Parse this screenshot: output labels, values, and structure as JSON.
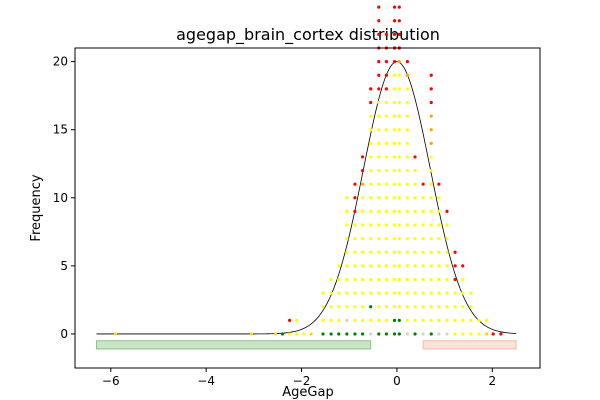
{
  "chart_data": {
    "type": "scatter",
    "title": "agegap_brain_cortex distribution",
    "xlabel": "AgeGap",
    "ylabel": "Frequency",
    "xlim": [
      -6.75,
      3.0
    ],
    "ylim": [
      -2.5,
      21.0
    ],
    "xticks": [
      -6,
      -4,
      -2,
      0,
      2
    ],
    "xtick_labels": [
      "−6",
      "−4",
      "−2",
      "0",
      "2"
    ],
    "yticks": [
      0,
      5,
      10,
      15,
      20
    ],
    "ytick_labels": [
      "0",
      "5",
      "10",
      "15",
      "20"
    ],
    "grid": false,
    "legend": "none",
    "density_curve": {
      "type": "gaussian",
      "mean": 0.0,
      "sd": 0.7,
      "peak": 20,
      "baseline": 0,
      "x_range": [
        -6.3,
        2.5
      ],
      "color": "#000000"
    },
    "range_bands": [
      {
        "x0": -6.3,
        "x1": -0.55,
        "y0": -1.1,
        "y1": -0.5,
        "fill": "#c9e5c5",
        "stroke": "#8cc488"
      },
      {
        "x0": 0.55,
        "x1": 2.5,
        "y0": -1.1,
        "y1": -0.5,
        "fill": "#fde2d9",
        "stroke": "#f4b9a6"
      }
    ],
    "point_colors": {
      "red": "#ff0000",
      "orange": "#ffa500",
      "yellow": "#ffff00",
      "green": "#008000",
      "lightgray": "#d3d3d3",
      "gold": "#ffd700"
    },
    "columns": [
      {
        "x": -5.9,
        "points": [
          "gold"
        ]
      },
      {
        "x": -3.05,
        "points": [
          "gold"
        ]
      },
      {
        "x": -2.55,
        "points": [
          "gold"
        ]
      },
      {
        "x": -2.4,
        "points": [
          "green"
        ]
      },
      {
        "x": -2.25,
        "points": [
          "yellow",
          "red"
        ]
      },
      {
        "x": -2.1,
        "points": [
          "yellow",
          "yellow"
        ]
      },
      {
        "x": -1.95,
        "points": [
          "yellow"
        ]
      },
      {
        "x": -1.8,
        "points": [
          "gold"
        ]
      },
      {
        "x": -1.55,
        "points": [
          "green",
          "yellow",
          "yellow",
          "yellow"
        ]
      },
      {
        "x": -1.38,
        "points": [
          "green",
          "yellow",
          "yellow",
          "yellow",
          "yellow"
        ]
      },
      {
        "x": -1.22,
        "points": [
          "green",
          "yellow",
          "yellow",
          "yellow",
          "yellow",
          "yellow"
        ]
      },
      {
        "x": -1.05,
        "points": [
          "green",
          "lightgray",
          "yellow",
          "yellow",
          "yellow",
          "yellow",
          "yellow",
          "yellow",
          "yellow",
          "yellow",
          "yellow"
        ]
      },
      {
        "x": -0.88,
        "points": [
          "green",
          "yellow",
          "yellow",
          "yellow",
          "yellow",
          "yellow",
          "yellow",
          "yellow",
          "yellow",
          "red",
          "red",
          "red"
        ]
      },
      {
        "x": -0.72,
        "points": [
          "green",
          "yellow",
          "yellow",
          "yellow",
          "yellow",
          "yellow",
          "yellow",
          "yellow",
          "yellow",
          "yellow",
          "yellow",
          "orange",
          "red",
          "red"
        ]
      },
      {
        "x": -0.55,
        "points": [
          "lightgray",
          "yellow",
          "green",
          "yellow",
          "yellow",
          "yellow",
          "yellow",
          "yellow",
          "yellow",
          "yellow",
          "yellow",
          "yellow",
          "yellow",
          "yellow",
          "yellow",
          "yellow",
          "yellow",
          "red",
          "red"
        ]
      },
      {
        "x": -0.38,
        "points": [
          "green",
          "yellow",
          "yellow",
          "yellow",
          "yellow",
          "yellow",
          "yellow",
          "yellow",
          "yellow",
          "yellow",
          "yellow",
          "yellow",
          "yellow",
          "yellow",
          "yellow",
          "yellow",
          "yellow",
          "yellow",
          "red",
          "red",
          "red",
          "red",
          "red",
          "red",
          "red",
          "red",
          "red",
          "red",
          "red",
          "red"
        ]
      },
      {
        "x": -0.22,
        "points": [
          "green",
          "yellow",
          "yellow",
          "yellow",
          "yellow",
          "yellow",
          "yellow",
          "yellow",
          "yellow",
          "yellow",
          "yellow",
          "yellow",
          "yellow",
          "yellow",
          "yellow",
          "yellow",
          "yellow",
          "yellow",
          "red",
          "red",
          "red",
          "red",
          "red"
        ]
      },
      {
        "x": -0.05,
        "points": [
          "green",
          "green",
          "yellow",
          "yellow",
          "yellow",
          "yellow",
          "yellow",
          "yellow",
          "yellow",
          "yellow",
          "yellow",
          "yellow",
          "yellow",
          "yellow",
          "yellow",
          "yellow",
          "yellow",
          "yellow",
          "yellow",
          "yellow",
          "red",
          "red",
          "red",
          "red",
          "red",
          "red",
          "red",
          "red",
          "red",
          "red",
          "red",
          "red",
          "red",
          "red",
          "red",
          "red",
          "red",
          "red",
          "red",
          "red",
          "red",
          "red",
          "red",
          "red"
        ]
      },
      {
        "x": 0.05,
        "points": [
          "green",
          "green",
          "yellow",
          "yellow",
          "yellow",
          "yellow",
          "yellow",
          "yellow",
          "yellow",
          "yellow",
          "yellow",
          "yellow",
          "yellow",
          "yellow",
          "yellow",
          "yellow",
          "yellow",
          "yellow",
          "yellow",
          "yellow",
          "orange",
          "red",
          "red",
          "red",
          "red",
          "red"
        ]
      },
      {
        "x": 0.22,
        "points": [
          "lightgray",
          "yellow",
          "yellow",
          "yellow",
          "yellow",
          "yellow",
          "yellow",
          "yellow",
          "yellow",
          "yellow",
          "yellow",
          "yellow",
          "yellow",
          "yellow",
          "yellow",
          "yellow",
          "yellow",
          "yellow",
          "yellow",
          "orange",
          "red"
        ]
      },
      {
        "x": 0.38,
        "points": [
          "green",
          "yellow",
          "yellow",
          "yellow",
          "yellow",
          "yellow",
          "yellow",
          "yellow",
          "yellow",
          "yellow",
          "yellow",
          "yellow",
          "yellow",
          "red"
        ]
      },
      {
        "x": 0.55,
        "points": [
          "lightgray",
          "yellow",
          "yellow",
          "yellow",
          "yellow",
          "yellow",
          "yellow",
          "yellow",
          "yellow",
          "yellow",
          "yellow",
          "red"
        ]
      },
      {
        "x": 0.72,
        "points": [
          "green",
          "yellow",
          "yellow",
          "yellow",
          "yellow",
          "yellow",
          "yellow",
          "yellow",
          "yellow",
          "yellow",
          "yellow",
          "yellow",
          "yellow",
          "yellow",
          "orange",
          "orange",
          "orange",
          "red",
          "red",
          "red"
        ]
      },
      {
        "x": 0.88,
        "points": [
          "lightgray",
          "yellow",
          "yellow",
          "yellow",
          "yellow",
          "yellow",
          "yellow",
          "yellow",
          "yellow",
          "yellow",
          "yellow",
          "red"
        ]
      },
      {
        "x": 1.05,
        "points": [
          "lightgray",
          "yellow",
          "yellow",
          "yellow",
          "yellow",
          "yellow",
          "yellow",
          "yellow",
          "yellow",
          "red"
        ]
      },
      {
        "x": 1.22,
        "points": [
          "yellow",
          "yellow",
          "yellow",
          "yellow",
          "red",
          "red",
          "red"
        ]
      },
      {
        "x": 1.38,
        "points": [
          "yellow",
          "yellow",
          "yellow",
          "yellow",
          "yellow",
          "red"
        ]
      },
      {
        "x": 1.55,
        "points": [
          "yellow",
          "yellow",
          "yellow",
          "yellow"
        ]
      },
      {
        "x": 1.72,
        "points": [
          "yellow",
          "yellow"
        ]
      },
      {
        "x": 1.88,
        "points": [
          "gold",
          "yellow"
        ]
      },
      {
        "x": 2.02,
        "points": [
          "red"
        ]
      },
      {
        "x": 2.18,
        "points": [
          "red"
        ]
      }
    ]
  }
}
